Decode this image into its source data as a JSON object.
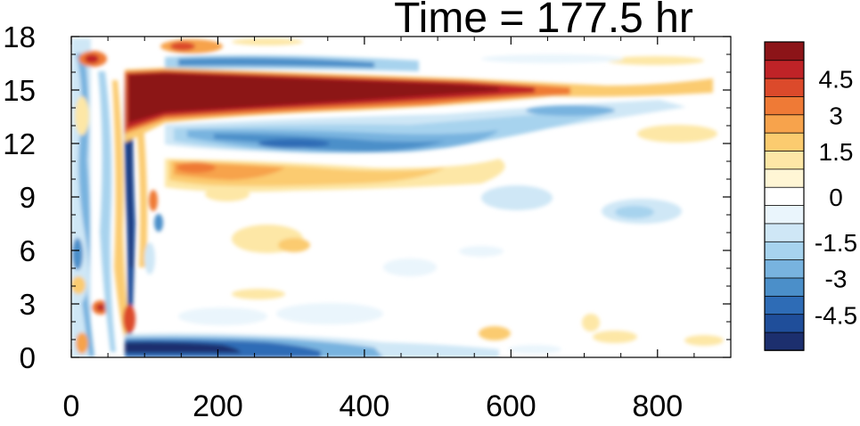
{
  "chart_data": {
    "type": "heatmap",
    "title": "Time = 177.5 hr",
    "xlabel": "",
    "ylabel": "",
    "xlim": [
      0,
      900
    ],
    "ylim": [
      0,
      18
    ],
    "x_ticks": [
      0,
      200,
      400,
      600,
      800
    ],
    "y_ticks": [
      0,
      3,
      6,
      9,
      12,
      15,
      18
    ],
    "grid": false,
    "colorbar": {
      "levels": [
        -5.25,
        -4.5,
        -3.75,
        -3,
        -2.25,
        -1.5,
        -0.75,
        -0.25,
        0.25,
        0.75,
        1.5,
        2.25,
        3,
        3.75,
        4.5,
        5.25
      ],
      "labels": [
        "-4.5",
        "-3",
        "-1.5",
        "0",
        "1.5",
        "3",
        "4.5"
      ],
      "label_values": [
        -4.5,
        -3,
        -1.5,
        0,
        1.5,
        3,
        4.5
      ],
      "colors": [
        "#1c2f6e",
        "#1f4e9a",
        "#2e6cb6",
        "#4b8fc9",
        "#78b3df",
        "#a7d3ee",
        "#cfe7f6",
        "#eaf5fc",
        "#ffffff",
        "#fff6d5",
        "#fde7a6",
        "#fbcb6f",
        "#f7a34c",
        "#ef7a36",
        "#dc4a2b",
        "#bf2327",
        "#8c1418"
      ]
    },
    "features": [
      {
        "name": "upper red band",
        "value": 5.5,
        "x_range": [
          70,
          620
        ],
        "y_center": 15.0
      },
      {
        "name": "upper blue band",
        "value": -3.5,
        "x_range": [
          130,
          760
        ],
        "y_center": 12.2
      },
      {
        "name": "orange band",
        "value": 2.5,
        "x_range": [
          130,
          560
        ],
        "y_center": 10.5
      },
      {
        "name": "top blue band",
        "value": -3.0,
        "x_range": [
          130,
          460
        ],
        "y_center": 16.7
      },
      {
        "name": "surface blue band",
        "value": -5.0,
        "x_range": [
          70,
          420
        ],
        "y_center": 0.5
      }
    ]
  }
}
